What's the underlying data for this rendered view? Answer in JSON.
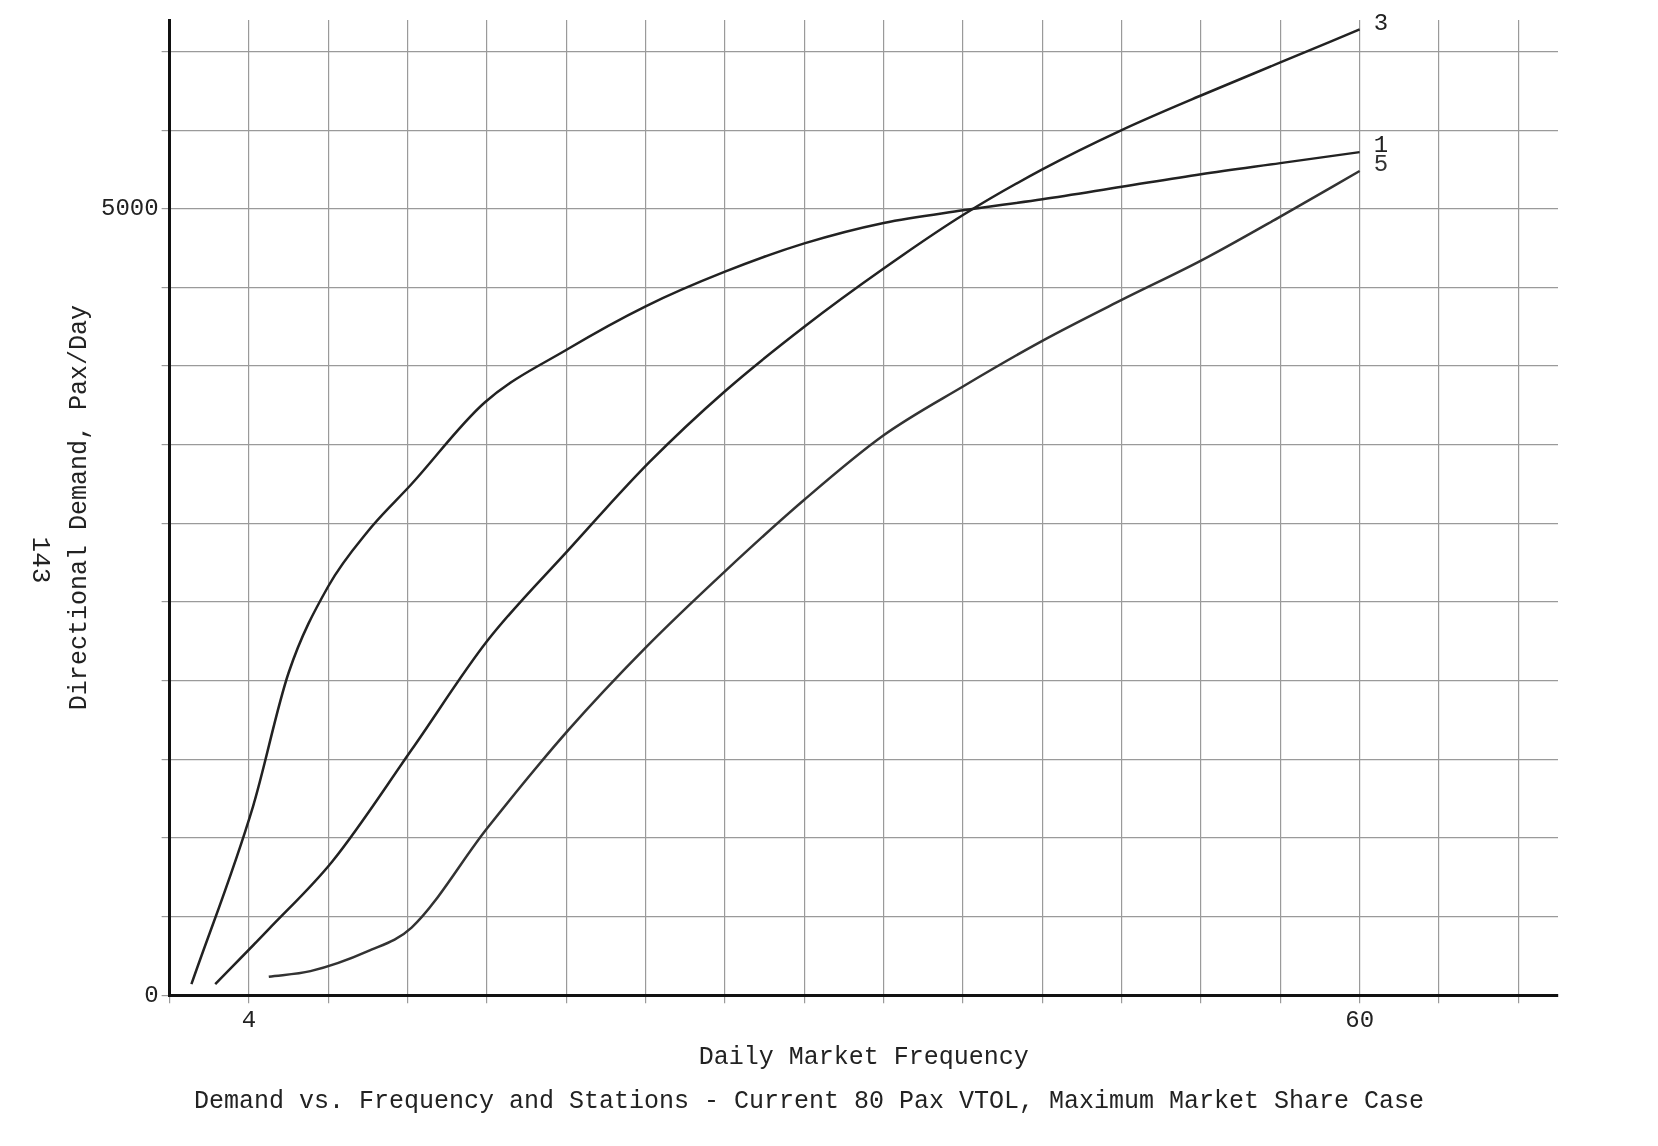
{
  "chart_data": {
    "type": "line",
    "title": "Demand vs. Frequency and Stations - Current 80 Pax VTOL, Maximum Market Share Case",
    "xlabel": "Daily Market Frequency",
    "ylabel": "Directional Demand, Pax/Day",
    "annotations": [
      "143"
    ],
    "series": [
      {
        "name": "1",
        "color": "#222222",
        "x": [
          1.1,
          4.2,
          6,
          8,
          10,
          12.2,
          15.9,
          20.1,
          24,
          28,
          32,
          36,
          40,
          44,
          48,
          52,
          56,
          60
        ],
        "values": [
          70,
          1198,
          2050,
          2600,
          2950,
          3250,
          3770,
          4110,
          4380,
          4600,
          4780,
          4910,
          4990,
          5060,
          5140,
          5220,
          5290,
          5360
        ]
      },
      {
        "name": "3",
        "color": "#222222",
        "x": [
          2.3,
          5,
          8.2,
          12.2,
          16,
          20.1,
          24.2,
          28,
          32,
          36,
          40,
          44,
          48,
          52,
          56,
          60
        ],
        "values": [
          70,
          420,
          850,
          1560,
          2250,
          2830,
          3390,
          3840,
          4250,
          4620,
          4960,
          5250,
          5500,
          5720,
          5930,
          6140
        ]
      },
      {
        "name": "5",
        "color": "#333333",
        "x": [
          5,
          7.1,
          10,
          12.2,
          16,
          20.1,
          24,
          28,
          32,
          36,
          40,
          44,
          48,
          52,
          56,
          60
        ],
        "values": [
          118,
          153,
          280,
          430,
          1060,
          1685,
          2210,
          2695,
          3150,
          3560,
          3870,
          4160,
          4420,
          4670,
          4950,
          5240
        ]
      }
    ],
    "xlim": [
      0,
      70
    ],
    "ylim": [
      0,
      6200
    ],
    "xticks": [
      {
        "value": 0,
        "label": null
      },
      4,
      {
        "value": 8,
        "label": null
      },
      {
        "value": 12,
        "label": null
      },
      {
        "value": 16,
        "label": null
      },
      {
        "value": 20,
        "label": null
      },
      {
        "value": 24,
        "label": null
      },
      {
        "value": 28,
        "label": null
      },
      {
        "value": 32,
        "label": null
      },
      {
        "value": 36,
        "label": null
      },
      {
        "value": 40,
        "label": null
      },
      {
        "value": 44,
        "label": null
      },
      {
        "value": 48,
        "label": null
      },
      {
        "value": 52,
        "label": null
      },
      {
        "value": 56,
        "label": null
      },
      60,
      {
        "value": 64,
        "label": null
      },
      {
        "value": 68,
        "label": null
      }
    ],
    "yticks": [
      0,
      {
        "value": 500,
        "label": null
      },
      {
        "value": 1000,
        "label": null
      },
      {
        "value": 1500,
        "label": null
      },
      {
        "value": 2000,
        "label": null
      },
      {
        "value": 2500,
        "label": null
      },
      {
        "value": 3000,
        "label": null
      },
      {
        "value": 3500,
        "label": null
      },
      {
        "value": 4000,
        "label": null
      },
      {
        "value": 4500,
        "label": null
      },
      5000,
      {
        "value": 5500,
        "label": null
      },
      {
        "value": 6000,
        "label": null
      }
    ],
    "grid": true,
    "legend": false,
    "marker": "none",
    "line_style": "solid"
  }
}
